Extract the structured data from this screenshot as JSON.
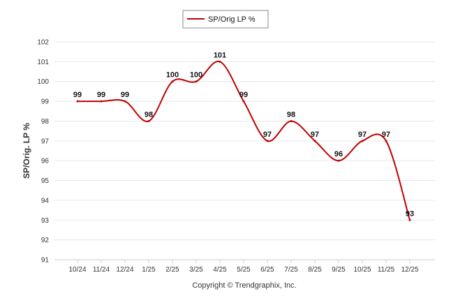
{
  "chart_data": {
    "type": "line",
    "categories": [
      "10/24",
      "11/24",
      "12/24",
      "1/25",
      "2/25",
      "3/25",
      "4/25",
      "5/25",
      "6/25",
      "7/25",
      "8/25",
      "9/25",
      "10/25",
      "11/25",
      "12/25"
    ],
    "series": [
      {
        "name": "SP/Orig LP %",
        "values": [
          99,
          99,
          99,
          98,
          100,
          100,
          101,
          99,
          97,
          98,
          97,
          96,
          97,
          97,
          93
        ],
        "data_labels": [
          "99",
          "99",
          "99",
          "98",
          "100",
          "100",
          "101",
          "99",
          "97",
          "98",
          "97",
          "96",
          "97",
          "97",
          "93"
        ],
        "color": "#c00000"
      }
    ],
    "ylabel": "SP/Orig. LP %",
    "xlabel": "",
    "ylim": [
      91,
      102
    ],
    "yticks": [
      "91",
      "92",
      "93",
      "94",
      "95",
      "96",
      "97",
      "98",
      "99",
      "100",
      "101",
      "102"
    ],
    "grid": true,
    "legend_position": "top-center"
  },
  "legend": {
    "label": "SP/Orig LP %"
  },
  "credit": "Copyright © Trendgraphix, Inc.",
  "colors": {
    "line": "#c00000",
    "grid": "#e6e6e6",
    "legend_border": "#888888"
  }
}
